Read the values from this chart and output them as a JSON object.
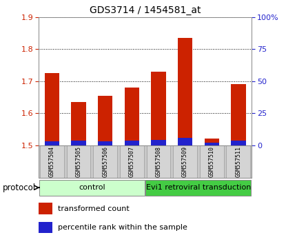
{
  "title": "GDS3714 / 1454581_at",
  "samples": [
    "GSM557504",
    "GSM557505",
    "GSM557506",
    "GSM557507",
    "GSM557508",
    "GSM557509",
    "GSM557510",
    "GSM557511"
  ],
  "red_values": [
    1.725,
    1.635,
    1.655,
    1.68,
    1.73,
    1.835,
    1.52,
    1.69
  ],
  "blue_values_pct": [
    3.0,
    3.5,
    3.0,
    3.5,
    4.0,
    5.5,
    2.0,
    3.5
  ],
  "ylim_left": [
    1.5,
    1.9
  ],
  "ylim_right": [
    0,
    100
  ],
  "yticks_left": [
    1.5,
    1.6,
    1.7,
    1.8,
    1.9
  ],
  "yticks_right": [
    0,
    25,
    50,
    75,
    100
  ],
  "ytick_labels_right": [
    "0",
    "25",
    "50",
    "75",
    "100%"
  ],
  "bar_width": 0.55,
  "red_color": "#cc2200",
  "blue_color": "#2222cc",
  "control_color": "#ccffcc",
  "transduction_color": "#44cc44",
  "protocol_label": "protocol",
  "control_label": "control",
  "transduction_label": "Evi1 retroviral transduction",
  "legend_red": "transformed count",
  "legend_blue": "percentile rank within the sample",
  "left_tick_color": "#cc2200",
  "right_tick_color": "#2222cc",
  "base_value": 1.5,
  "n_control": 4,
  "n_transduction": 4
}
